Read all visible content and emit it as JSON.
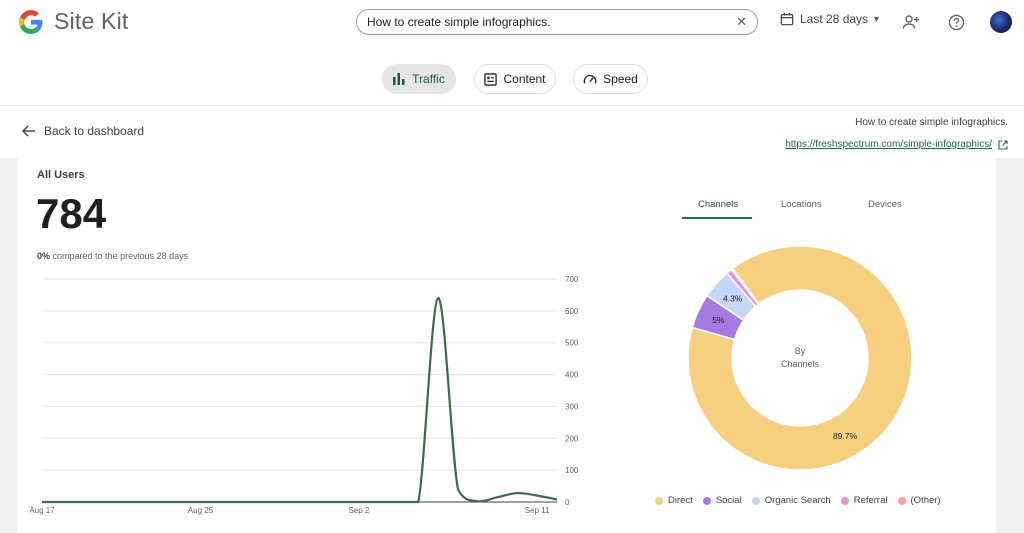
{
  "header": {
    "app_name": "Site Kit",
    "search_value": "How to create simple infographics.",
    "date_range": "Last 28 days"
  },
  "tabs": [
    {
      "label": "Traffic",
      "active": true
    },
    {
      "label": "Content",
      "active": false
    },
    {
      "label": "Speed",
      "active": false
    }
  ],
  "nav": {
    "back_label": "Back to dashboard",
    "page_title": "How to create simple infographics.",
    "page_url": "https://freshspectrum.com/simple-infographics/"
  },
  "metric": {
    "label": "All Users",
    "value": "784",
    "change": "0%",
    "compare_text": "compared to the previous 28 days"
  },
  "breakdown": {
    "tabs": [
      "Channels",
      "Locations",
      "Devices"
    ],
    "active_tab": "Channels",
    "center_label_1": "By",
    "center_label_2": "Channels"
  },
  "chart_data": [
    {
      "type": "line",
      "x_tick_labels": [
        "Aug 17",
        "Aug 25",
        "Sep 2",
        "Sep 11"
      ],
      "y_ticks": [
        0,
        100,
        200,
        300,
        400,
        500,
        600,
        700
      ],
      "ylim": [
        0,
        700
      ],
      "grid": true,
      "series": [
        {
          "color": "#3d6b4a",
          "points": [
            [
              "Aug 17",
              0
            ],
            [
              "Aug 21",
              0
            ],
            [
              "Aug 25",
              0
            ],
            [
              "Aug 29",
              0
            ],
            [
              "Sep 2",
              0
            ],
            [
              "Sep 4",
              0
            ],
            [
              "Sep 5",
              0
            ],
            [
              "Sep 6",
              640
            ],
            [
              "Sep 7",
              40
            ],
            [
              "Sep 8",
              2
            ],
            [
              "Sep 9",
              15
            ],
            [
              "Sep 10",
              28
            ],
            [
              "Sep 11",
              20
            ],
            [
              "Sep 12",
              8
            ]
          ]
        }
      ]
    },
    {
      "type": "pie",
      "slices": [
        {
          "label": "Direct",
          "value": 89.7,
          "display": "89.7%",
          "color": "#f6cf7f"
        },
        {
          "label": "Social",
          "value": 5.0,
          "display": "5%",
          "color": "#a57be0"
        },
        {
          "label": "Organic Search",
          "value": 4.3,
          "display": "4.3%",
          "color": "#c6d6f7"
        },
        {
          "label": "Referral",
          "value": 0.8,
          "display": "",
          "color": "#e693d8"
        },
        {
          "label": "(Other)",
          "value": 0.2,
          "display": "",
          "color": "#f3a68c"
        }
      ]
    }
  ]
}
